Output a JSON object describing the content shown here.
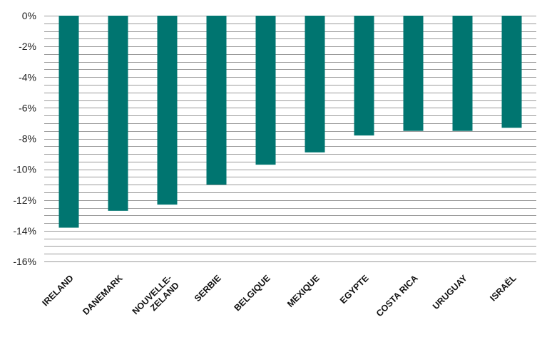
{
  "chart_data": {
    "type": "bar",
    "categories": [
      "IRELAND",
      "DANEMARK",
      "NOUVELLE-\nZELAND",
      "SERBIE",
      "BELGIQUE",
      "MEXIQUE",
      "EGYPTE",
      "COSTA RICA",
      "URUGUAY",
      "ISRAËL"
    ],
    "values": [
      -13.8,
      -12.7,
      -12.3,
      -11.0,
      -9.7,
      -8.9,
      -7.8,
      -7.5,
      -7.5,
      -7.3
    ],
    "ylim": [
      -16,
      0
    ],
    "yticks": [
      0,
      -2,
      -4,
      -6,
      -8,
      -10,
      -12,
      -14,
      -16
    ],
    "ytick_labels": [
      "0%",
      "-2%",
      "-4%",
      "-6%",
      "-8%",
      "-10%",
      "-12%",
      "-14%",
      "-16%"
    ],
    "minor_grid_step": 0.5,
    "grid": true,
    "bar_color": "#007570",
    "grid_color": "#9a9a9a",
    "title": "",
    "xlabel": "",
    "ylabel": ""
  }
}
